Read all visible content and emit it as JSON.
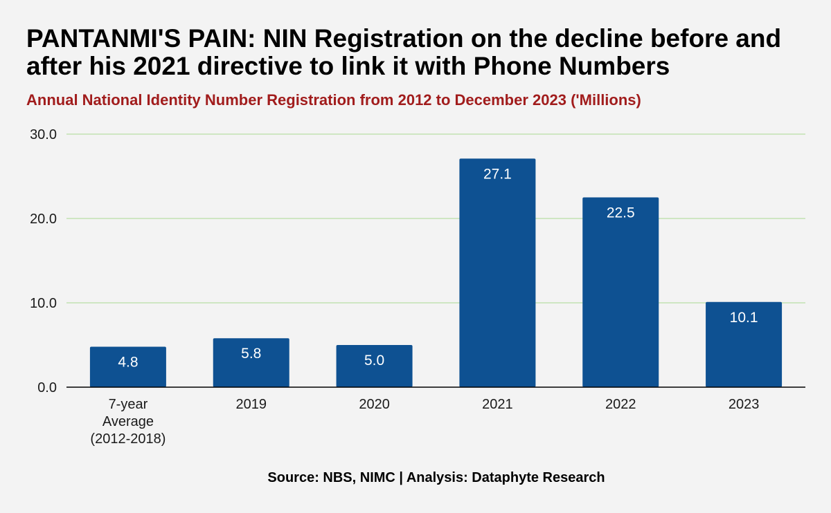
{
  "title": "PANTANMI'S PAIN: NIN Registration on the decline before and after his 2021 directive to link it with Phone Numbers",
  "subtitle": "Annual National Identity Number Registration from 2012 to December 2023 ('Millions)",
  "source": "Source: NBS, NIMC | Analysis: Dataphyte Research",
  "colors": {
    "bar": "#0e5192",
    "bar_label": "#ffffff",
    "grid": "#b7dfa5",
    "baseline": "#000000",
    "title": "#000000",
    "subtitle": "#a11c1c",
    "background": "#f3f3f3"
  },
  "chart_data": {
    "type": "bar",
    "title": "PANTANMI'S PAIN: NIN Registration on the decline before and after his 2021 directive to link it with Phone Numbers",
    "subtitle": "Annual National Identity Number Registration from 2012 to December 2023 ('Millions)",
    "categories": [
      "7-year Average (2012-2018)",
      "2019",
      "2020",
      "2021",
      "2022",
      "2023"
    ],
    "category_lines": [
      [
        "7-year",
        "Average",
        "(2012-2018)"
      ],
      [
        "2019"
      ],
      [
        "2020"
      ],
      [
        "2021"
      ],
      [
        "2022"
      ],
      [
        "2023"
      ]
    ],
    "values": [
      4.8,
      5.8,
      5.0,
      27.1,
      22.5,
      10.1
    ],
    "value_labels": [
      "4.8",
      "5.8",
      "5.0",
      "27.1",
      "22.5",
      "10.1"
    ],
    "ylim": [
      0,
      30
    ],
    "yticks": [
      0,
      10,
      20,
      30
    ],
    "ytick_labels": [
      "0.0",
      "10.0",
      "20.0",
      "30.0"
    ],
    "grid": true,
    "legend": "none",
    "xlabel": "",
    "ylabel": ""
  }
}
